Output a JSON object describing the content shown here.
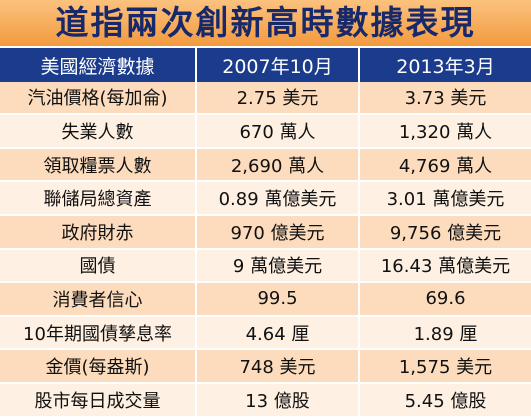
{
  "header": {
    "title": "道指兩次創新高時數據表現"
  },
  "table": {
    "columns": [
      "美國經濟數據",
      "2007年10月",
      "2013年3月"
    ],
    "rows": [
      [
        "汽油價格(每加侖)",
        "2.75 美元",
        "3.73 美元"
      ],
      [
        "失業人數",
        "670 萬人",
        "1,320 萬人"
      ],
      [
        "領取糧票人數",
        "2,690 萬人",
        "4,769 萬人"
      ],
      [
        "聯儲局總資產",
        "0.89 萬億美元",
        "3.01 萬億美元"
      ],
      [
        "政府財赤",
        "970 億美元",
        "9,756 億美元"
      ],
      [
        "國債",
        "9 萬億美元",
        "16.43 萬億美元"
      ],
      [
        "消費者信心",
        "99.5",
        "69.6"
      ],
      [
        "10年期國債孳息率",
        "4.64 厘",
        "1.89 厘"
      ],
      [
        "金價(每盎斯)",
        "748 美元",
        "1,575 美元"
      ],
      [
        "股市每日成交量",
        "13 億股",
        "5.45 億股"
      ]
    ]
  }
}
